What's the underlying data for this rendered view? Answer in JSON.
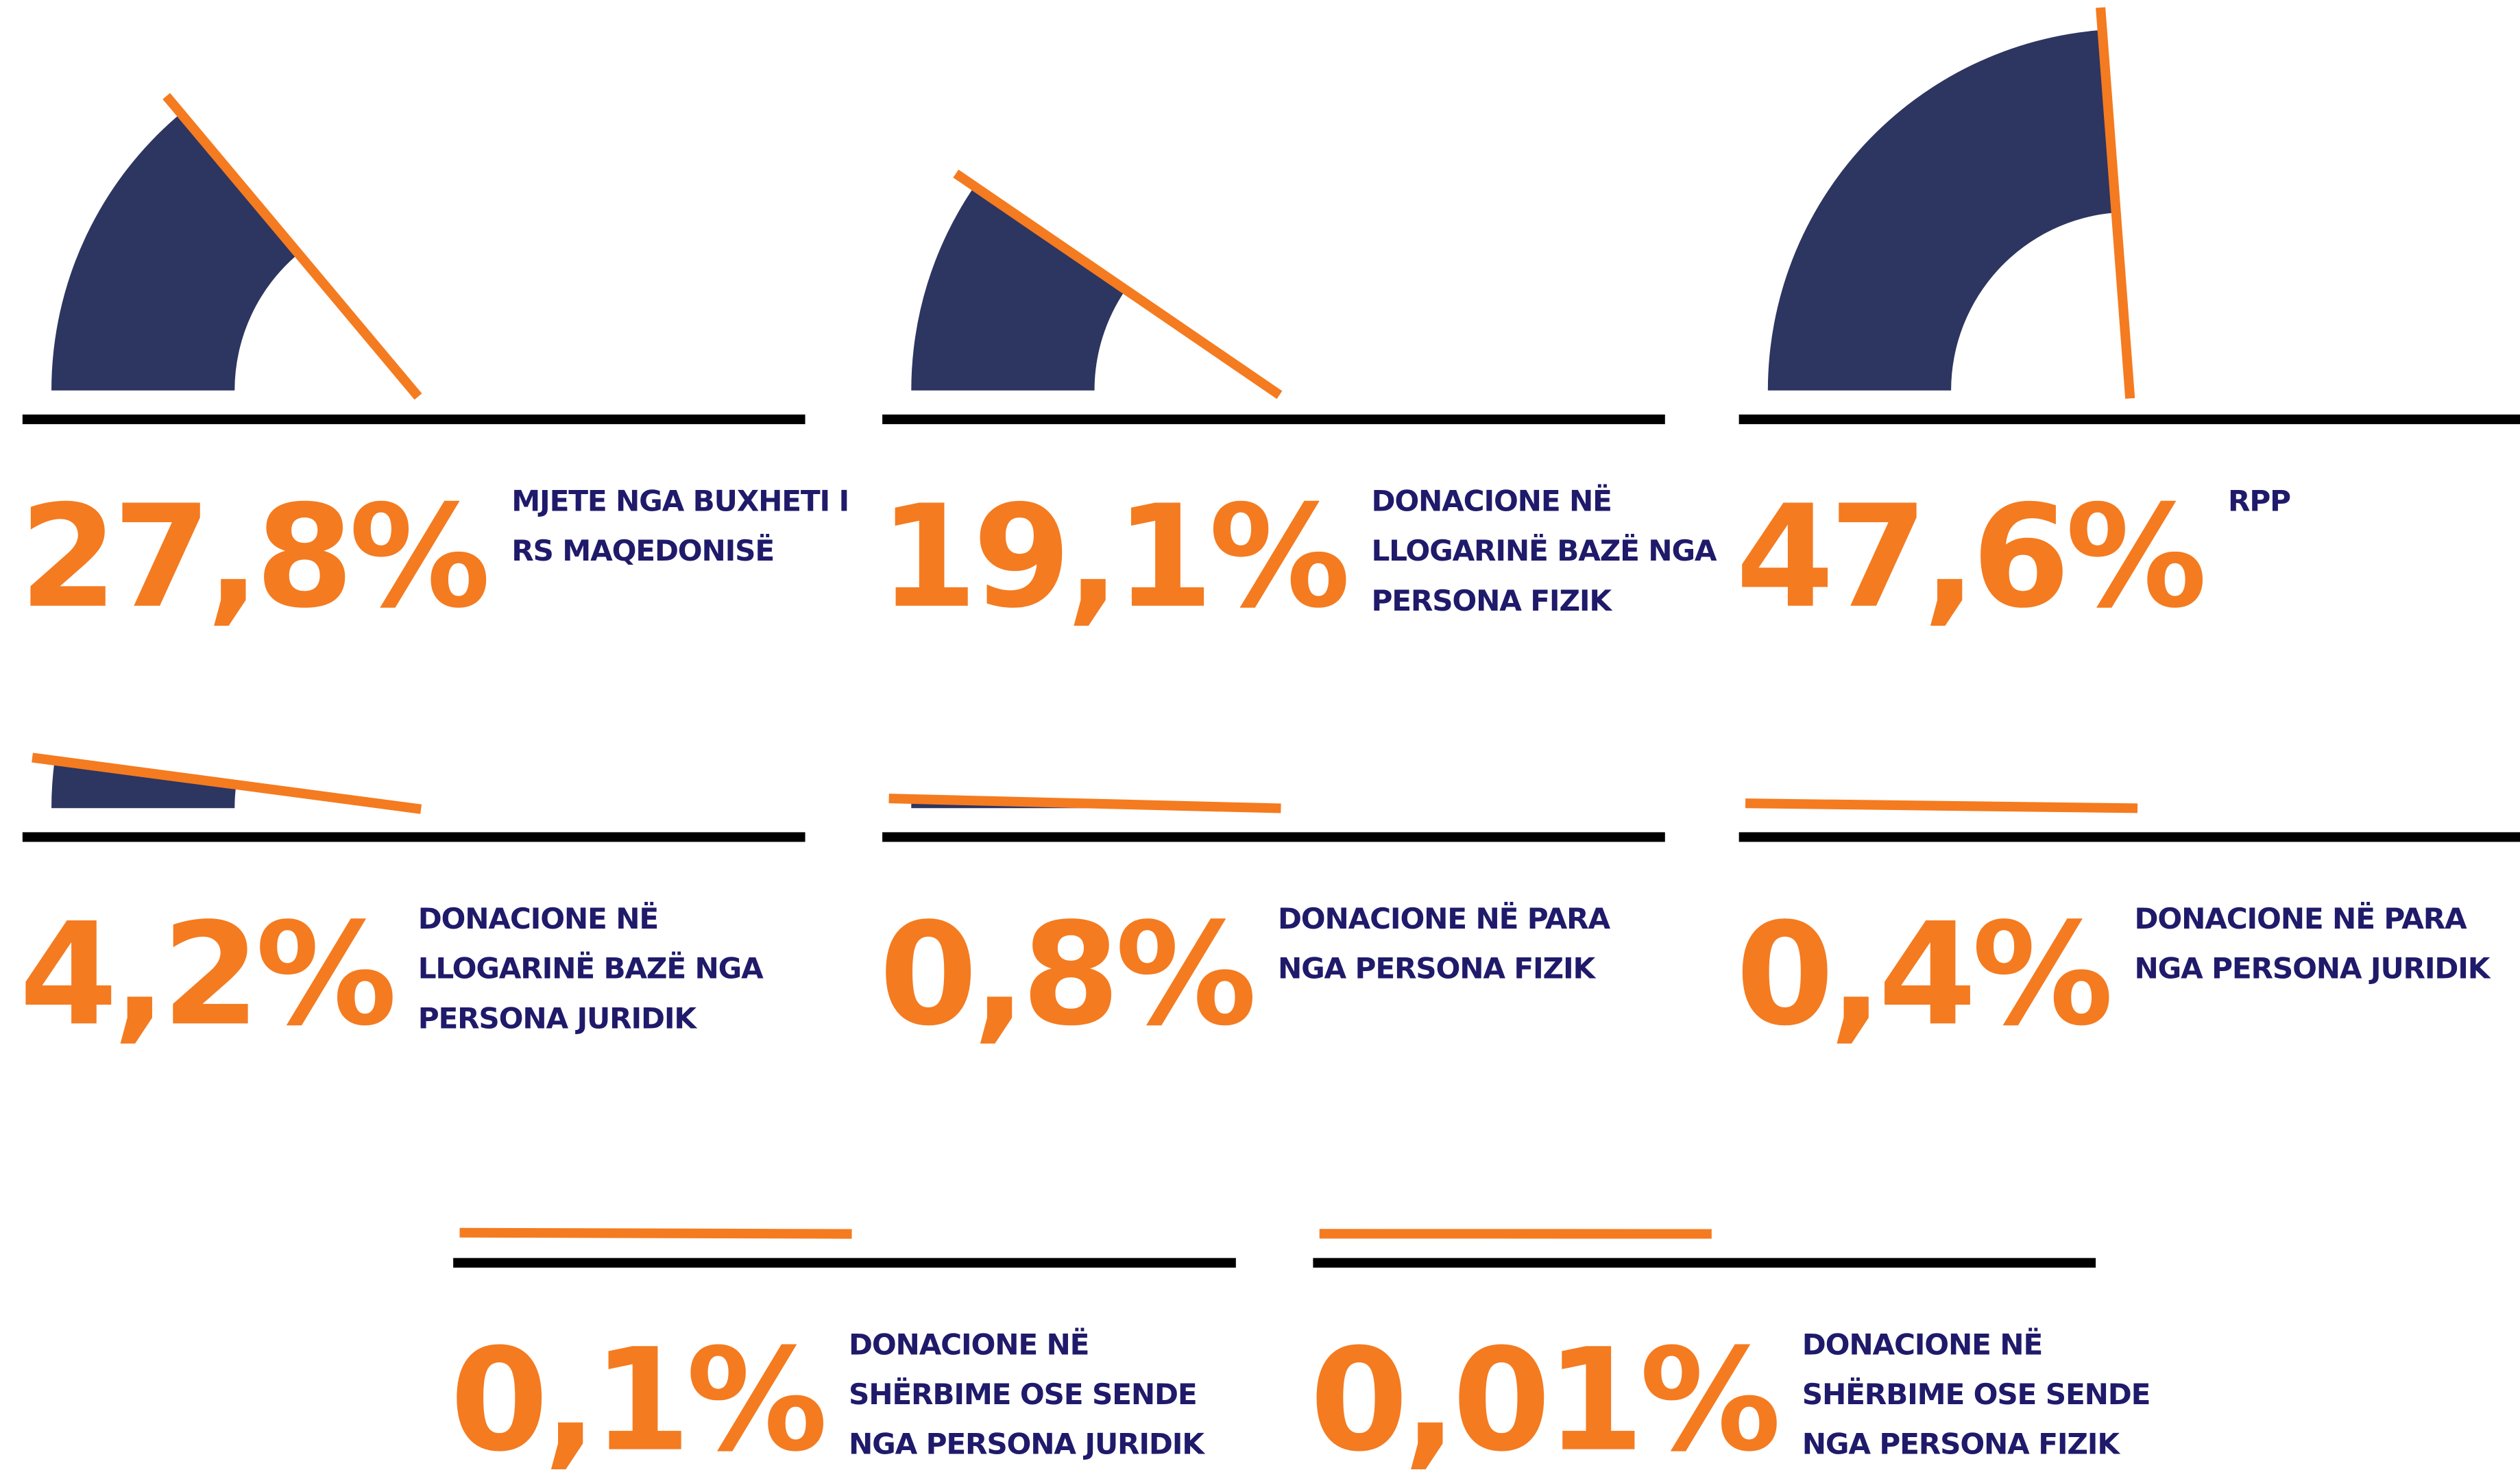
{
  "chart_data": {
    "type": "gauge",
    "categories": [
      "MJETE NGA BUXHETI I RS MAQEDONISË",
      "DONACIONE NË LLOGARINË BAZË NGA PERSONA FIZIK",
      "RPP",
      "DONACIONE NË LLOGARINË BAZË NGA PERSONA JURIDIK",
      "DONACIONE NË PARA NGA PERSONA FIZIK",
      "DONACIONE NË PARA NGA PERSONA JURIDIK",
      "DONACIONE NË SHËRBIME OSE SENDE NGA PERSONA JURIDIK",
      "DONACIONE NË SHËRBIME OSE SENDE NGA PERSONA FIZIK"
    ],
    "values": [
      27.8,
      19.1,
      47.6,
      4.2,
      0.8,
      0.4,
      0.1,
      0.01
    ],
    "value_labels": [
      "27,8%",
      "19,1%",
      "47,6%",
      "4,2%",
      "0,8%",
      "0,4%",
      "0,1%",
      "0,01%"
    ],
    "ylim": [
      0,
      100
    ],
    "color": "#2d3561",
    "needle_color": "#f47b20",
    "label_color": "#f47b20",
    "text_color": "#1f1a6a"
  }
}
